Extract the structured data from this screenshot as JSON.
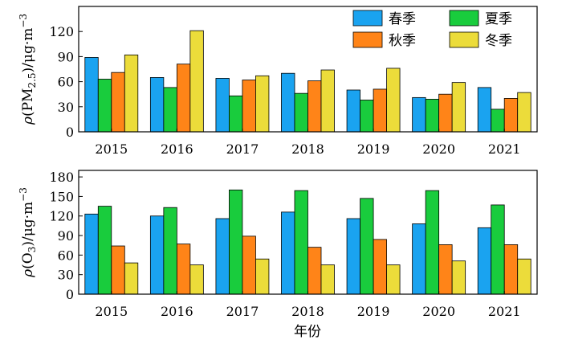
{
  "colors": {
    "spring": "#1aa3f0",
    "summer": "#19cc3d",
    "autumn": "#ff8418",
    "winter": "#ecdc3a"
  },
  "legend": [
    "春季",
    "夏季",
    "秋季",
    "冬季"
  ],
  "xlabel": "年份",
  "chart_data": [
    {
      "type": "bar",
      "categories": [
        "2015",
        "2016",
        "2017",
        "2018",
        "2019",
        "2020",
        "2021"
      ],
      "ylabel_parts": {
        "pre": "ρ(PM",
        "sub": "2.5",
        "post": ")/μg·m",
        "sup": "−3"
      },
      "ylim": [
        0,
        150
      ],
      "yticks": [
        0,
        30,
        60,
        90,
        120
      ],
      "series": [
        {
          "name": "春季",
          "values": [
            89,
            65,
            64,
            70,
            50,
            41,
            53
          ]
        },
        {
          "name": "夏季",
          "values": [
            63,
            53,
            43,
            46,
            38,
            39,
            27
          ]
        },
        {
          "name": "秋季",
          "values": [
            71,
            81,
            62,
            61,
            51,
            45,
            40
          ]
        },
        {
          "name": "冬季",
          "values": [
            92,
            121,
            67,
            74,
            76,
            59,
            47
          ]
        }
      ],
      "legend_position": "top-right"
    },
    {
      "type": "bar",
      "categories": [
        "2015",
        "2016",
        "2017",
        "2018",
        "2019",
        "2020",
        "2021"
      ],
      "ylabel_parts": {
        "pre": "ρ(O",
        "sub": "3",
        "post": ")/μg·m",
        "sup": "−3"
      },
      "ylim": [
        0,
        190
      ],
      "yticks": [
        0,
        30,
        60,
        90,
        120,
        150,
        180
      ],
      "series": [
        {
          "name": "春季",
          "values": [
            123,
            120,
            116,
            126,
            116,
            108,
            102
          ]
        },
        {
          "name": "夏季",
          "values": [
            135,
            133,
            160,
            159,
            147,
            159,
            137
          ]
        },
        {
          "name": "秋季",
          "values": [
            74,
            77,
            89,
            72,
            84,
            76,
            76
          ]
        },
        {
          "name": "冬季",
          "values": [
            48,
            45,
            54,
            45,
            45,
            51,
            54
          ]
        }
      ]
    }
  ]
}
